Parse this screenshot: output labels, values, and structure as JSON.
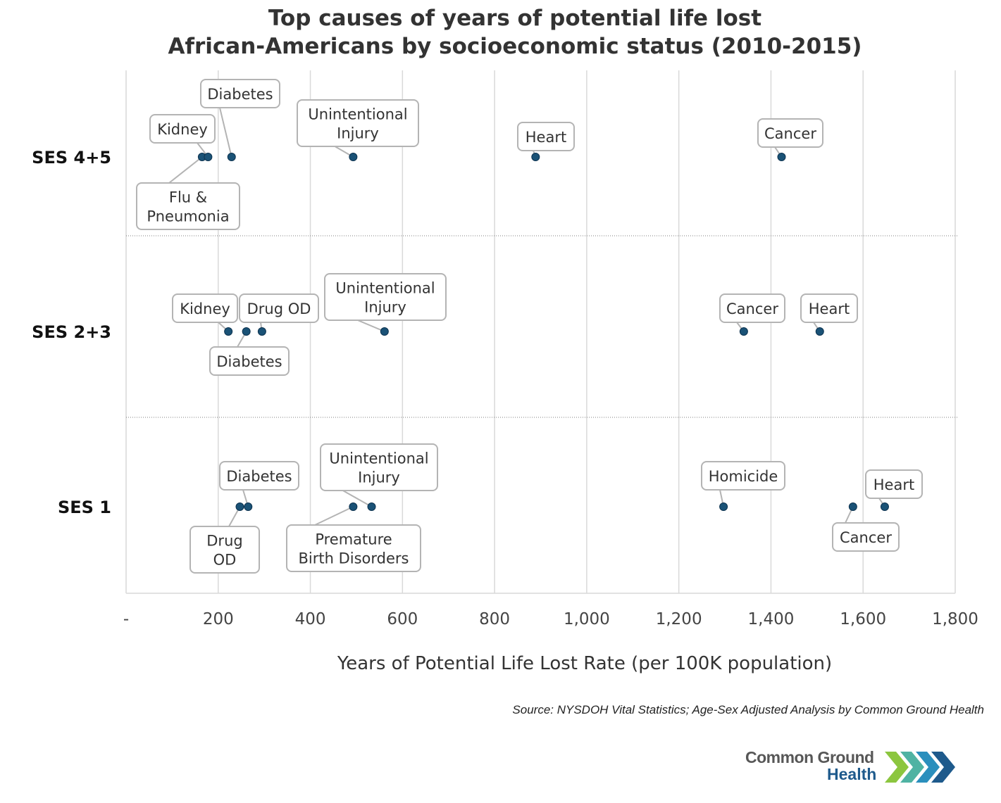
{
  "title": {
    "line1": "Top causes of years of potential life lost",
    "line2": "African-Americans by socioeconomic status (2010-2015)"
  },
  "source": "Source: NYSDOH Vital Statistics; Age-Sex Adjusted Analysis by Common Ground Health",
  "logo": {
    "line1": "Common Ground",
    "line2": "Health"
  },
  "colors": {
    "point": "#1a5276",
    "grid": "#d9d9d9",
    "callout_border": "#b4b4b4",
    "title": "#333333"
  },
  "chart_data": {
    "type": "scatter",
    "xlabel": "Years of Potential Life Lost Rate (per 100K population)",
    "ylabel": "",
    "xlim": [
      0,
      1800
    ],
    "xticks": [
      0,
      200,
      400,
      600,
      800,
      1000,
      1200,
      1400,
      1600,
      1800
    ],
    "xtick_labels": [
      "-",
      "200",
      "400",
      "600",
      "800",
      "1,000",
      "1,200",
      "1,400",
      "1,600",
      "1,800"
    ],
    "categories": [
      "SES 4+5",
      "SES 2+3",
      "SES 1"
    ],
    "series": [
      {
        "name": "SES 4+5",
        "points": [
          {
            "label": [
              "Flu &",
              "Pneumonia"
            ],
            "value": 165
          },
          {
            "label": [
              "Kidney"
            ],
            "value": 178
          },
          {
            "label": [
              "Diabetes"
            ],
            "value": 229
          },
          {
            "label": [
              "Unintentional",
              "Injury"
            ],
            "value": 493
          },
          {
            "label": [
              "Heart"
            ],
            "value": 889
          },
          {
            "label": [
              "Cancer"
            ],
            "value": 1423
          }
        ]
      },
      {
        "name": "SES 2+3",
        "points": [
          {
            "label": [
              "Kidney"
            ],
            "value": 222
          },
          {
            "label": [
              "Diabetes"
            ],
            "value": 261
          },
          {
            "label": [
              "Drug OD"
            ],
            "value": 295
          },
          {
            "label": [
              "Unintentional",
              "Injury"
            ],
            "value": 561
          },
          {
            "label": [
              "Cancer"
            ],
            "value": 1341
          },
          {
            "label": [
              "Heart"
            ],
            "value": 1506
          }
        ]
      },
      {
        "name": "SES 1",
        "points": [
          {
            "label": [
              "Drug",
              "OD"
            ],
            "value": 247
          },
          {
            "label": [
              "Diabetes"
            ],
            "value": 265
          },
          {
            "label": [
              "Premature",
              "Birth Disorders"
            ],
            "value": 493
          },
          {
            "label": [
              "Unintentional",
              "Injury"
            ],
            "value": 533
          },
          {
            "label": [
              "Homicide"
            ],
            "value": 1297
          },
          {
            "label": [
              "Cancer"
            ],
            "value": 1578
          },
          {
            "label": [
              "Heart"
            ],
            "value": 1647
          }
        ]
      }
    ]
  }
}
